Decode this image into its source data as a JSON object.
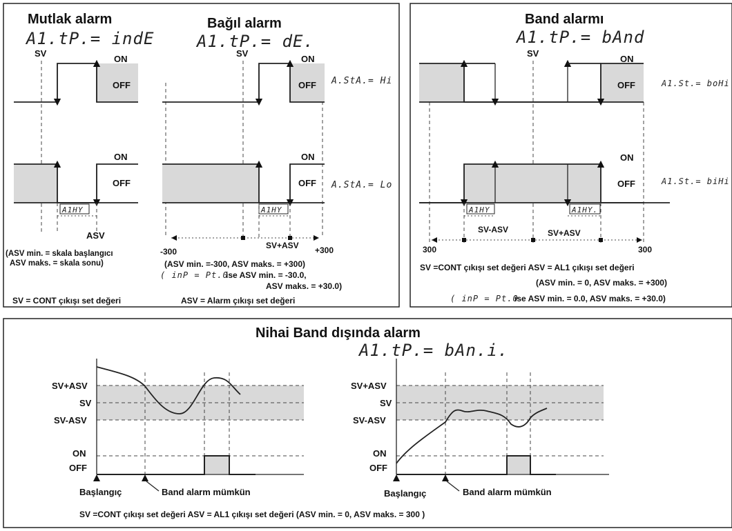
{
  "panel_mutlak": {
    "title": "Mutlak alarm",
    "code": "A1.tP.= indE",
    "sv": "SV",
    "on_top": "ON",
    "off_top": "OFF",
    "on_bot": "ON",
    "off_bot": "OFF",
    "hys": "A1HY",
    "asv": "ASV",
    "note1": "(ASV min.  = skala başlangıcı",
    "note2": "ASV maks. = skala sonu)"
  },
  "panel_bagil": {
    "title": "Bağıl alarm",
    "code": "A1.tP.= dE.",
    "sv": "SV",
    "on_top": "ON",
    "off_top": "OFF",
    "on_bot": "ON",
    "off_bot": "OFF",
    "sta_hi": "A.StA.= Hi",
    "sta_lo": "A.StA.= Lo",
    "hys": "A1HY",
    "left_scale": "-300",
    "svasv": "SV+ASV",
    "right_scale": "+300",
    "note1": "(ASV min.  =-300, ASV maks. = +300)",
    "note2_code": "( inP = Pt.0",
    "note2": "ise   ASV min.   = -30.0,",
    "note3": "ASV maks. = +30.0)"
  },
  "footer_left": {
    "sv_def": "SV    = CONT çıkışı set değeri",
    "asv_def": "ASV = Alarm çıkışı set değeri"
  },
  "panel_band": {
    "title": "Band alarmı",
    "code": "A1.tP.= bAnd",
    "sv": "SV",
    "on_top": "ON",
    "off_top": "OFF",
    "on_bot": "ON",
    "off_bot": "OFF",
    "st_top": "A1.St.= boHi",
    "st_bot": "A1.St.= biHi",
    "hys1": "A1HY",
    "hys2": "A1HY.",
    "svminus": "SV-ASV",
    "svplus": "SV+ASV",
    "scale_left": "300",
    "scale_right": "300",
    "def_line": "SV =CONT çıkışı set değeri      ASV = AL1 çıkışı set değeri",
    "note1": "(ASV min. = 0,  ASV maks. = +300)",
    "note2_code": "( inP = Pt.0",
    "note2": "ise  ASV min. = 0.0, ASV maks. = +30.0)"
  },
  "panel_nihai": {
    "title": "Nihai Band dışında alarm",
    "code": "A1.tP.= bAn.i.",
    "svplus": "SV+ASV",
    "sv": "SV",
    "svminus": "SV-ASV",
    "on": "ON",
    "off": "OFF",
    "start": "Başlangıç",
    "enable": "Band alarm mümkün",
    "svplus2": "SV+ASV",
    "sv2": "SV",
    "svminus2": "SV-ASV",
    "on2": "ON",
    "off2": "OFF",
    "start2": "Başlangıç",
    "enable2": "Band alarm mümkün",
    "footer": "SV =CONT çıkışı set değeri     ASV = AL1 çıkışı set değeri  (ASV min. = 0,  ASV maks. = 300 )"
  }
}
